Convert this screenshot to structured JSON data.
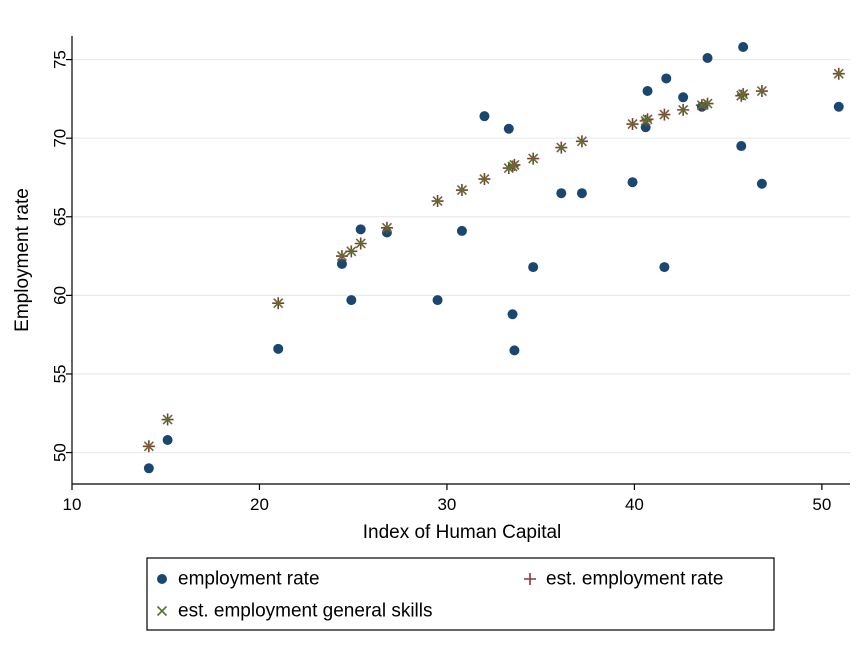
{
  "chart_data": {
    "type": "scatter",
    "title": "",
    "xlabel": "Index of Human Capital",
    "ylabel": "Employment rate",
    "xlim": [
      10,
      51.5
    ],
    "ylim": [
      48,
      76.5
    ],
    "xticks": [
      10,
      20,
      30,
      40,
      50
    ],
    "yticks": [
      50,
      55,
      60,
      65,
      70,
      75
    ],
    "grid": "horizontal",
    "legend_position": "bottom",
    "series": [
      {
        "name": "employment rate",
        "marker": "circle",
        "color": "#1a476f",
        "points": [
          [
            14.1,
            49.0
          ],
          [
            15.1,
            50.8
          ],
          [
            21.0,
            56.6
          ],
          [
            24.4,
            62.0
          ],
          [
            24.9,
            59.7
          ],
          [
            25.4,
            64.2
          ],
          [
            26.8,
            64.0
          ],
          [
            29.5,
            59.7
          ],
          [
            30.8,
            64.1
          ],
          [
            32.0,
            71.4
          ],
          [
            33.3,
            70.6
          ],
          [
            33.5,
            58.8
          ],
          [
            33.6,
            56.5
          ],
          [
            34.6,
            61.8
          ],
          [
            36.1,
            66.5
          ],
          [
            37.2,
            66.5
          ],
          [
            39.9,
            67.2
          ],
          [
            40.6,
            70.7
          ],
          [
            40.7,
            73.0
          ],
          [
            41.6,
            61.8
          ],
          [
            41.7,
            73.8
          ],
          [
            42.6,
            72.6
          ],
          [
            43.6,
            72.0
          ],
          [
            43.9,
            75.1
          ],
          [
            45.7,
            69.5
          ],
          [
            45.8,
            75.8
          ],
          [
            46.8,
            67.1
          ],
          [
            50.9,
            72.0
          ]
        ]
      },
      {
        "name": "est. employment rate",
        "marker": "plus",
        "color": "#90353b",
        "points": [
          [
            14.1,
            50.4
          ],
          [
            15.1,
            52.1
          ],
          [
            21.0,
            59.5
          ],
          [
            24.4,
            62.5
          ],
          [
            24.9,
            62.8
          ],
          [
            25.4,
            63.3
          ],
          [
            26.8,
            64.3
          ],
          [
            29.5,
            66.0
          ],
          [
            30.8,
            66.7
          ],
          [
            32.0,
            67.4
          ],
          [
            33.3,
            68.1
          ],
          [
            33.5,
            68.2
          ],
          [
            33.6,
            68.3
          ],
          [
            34.6,
            68.7
          ],
          [
            36.1,
            69.4
          ],
          [
            37.2,
            69.8
          ],
          [
            39.9,
            70.9
          ],
          [
            40.6,
            71.1
          ],
          [
            40.7,
            71.2
          ],
          [
            41.6,
            71.5
          ],
          [
            42.6,
            71.8
          ],
          [
            43.6,
            72.1
          ],
          [
            43.9,
            72.2
          ],
          [
            45.7,
            72.7
          ],
          [
            45.8,
            72.8
          ],
          [
            46.8,
            73.0
          ],
          [
            50.9,
            74.1
          ]
        ]
      },
      {
        "name": "est. employment general skills",
        "marker": "x",
        "color": "#55752f",
        "points": [
          [
            14.1,
            50.4
          ],
          [
            15.1,
            52.1
          ],
          [
            21.0,
            59.5
          ],
          [
            24.4,
            62.5
          ],
          [
            24.9,
            62.8
          ],
          [
            25.4,
            63.3
          ],
          [
            26.8,
            64.3
          ],
          [
            29.5,
            66.0
          ],
          [
            30.8,
            66.7
          ],
          [
            32.0,
            67.4
          ],
          [
            33.3,
            68.1
          ],
          [
            33.5,
            68.2
          ],
          [
            33.6,
            68.3
          ],
          [
            34.6,
            68.7
          ],
          [
            36.1,
            69.4
          ],
          [
            37.2,
            69.8
          ],
          [
            39.9,
            70.9
          ],
          [
            40.6,
            71.1
          ],
          [
            40.7,
            71.2
          ],
          [
            41.6,
            71.5
          ],
          [
            42.6,
            71.8
          ],
          [
            43.6,
            72.1
          ],
          [
            43.9,
            72.2
          ],
          [
            45.7,
            72.7
          ],
          [
            45.8,
            72.8
          ],
          [
            46.8,
            73.0
          ],
          [
            50.9,
            74.1
          ]
        ]
      }
    ]
  }
}
